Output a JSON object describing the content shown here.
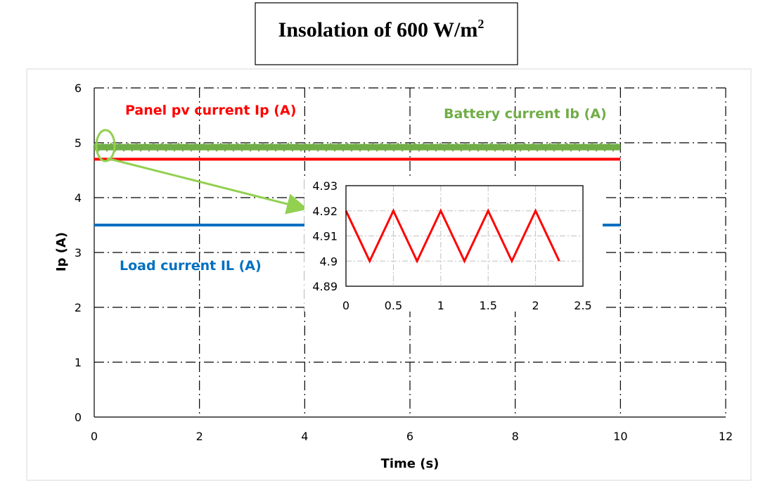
{
  "chart_data": {
    "type": "line",
    "title": "Insolation of 600 W/m",
    "title_superscript": "2",
    "xlabel": "Time (s)",
    "ylabel": "Ip (A)",
    "xlim": [
      0,
      12
    ],
    "ylim": [
      0,
      6
    ],
    "xticks": [
      0,
      2,
      4,
      6,
      8,
      10,
      12
    ],
    "yticks": [
      0,
      1,
      2,
      3,
      4,
      5,
      6
    ],
    "grid": true,
    "series": [
      {
        "name": "Panel pv current Ip (A)",
        "color": "#ff0000",
        "x": [
          0,
          10
        ],
        "y": [
          4.7,
          4.7
        ]
      },
      {
        "name": "Battery current Ib (A)",
        "color": "#70ad47",
        "x": [
          0,
          10
        ],
        "y": [
          4.92,
          4.92
        ]
      },
      {
        "name": "Load current IL (A)",
        "color": "#0070c0",
        "x": [
          0,
          10
        ],
        "y": [
          3.5,
          3.5
        ]
      }
    ],
    "inset": {
      "type": "line",
      "xlim": [
        0,
        2.5
      ],
      "ylim": [
        4.89,
        4.93
      ],
      "xticks": [
        0,
        0.5,
        1,
        1.5,
        2,
        2.5
      ],
      "yticks": [
        4.89,
        4.9,
        4.91,
        4.92,
        4.93
      ],
      "series": [
        {
          "color": "#ff0000",
          "x": [
            0,
            0.25,
            0.5,
            0.75,
            1,
            1.25,
            1.5,
            1.75,
            2,
            2.25
          ],
          "y": [
            4.92,
            4.9,
            4.92,
            4.9,
            4.92,
            4.9,
            4.92,
            4.9,
            4.92,
            4.9
          ]
        }
      ]
    }
  },
  "colors": {
    "panel": "#ff0000",
    "battery": "#70ad47",
    "load": "#0070c0",
    "zoom_marker": "#92d050"
  }
}
